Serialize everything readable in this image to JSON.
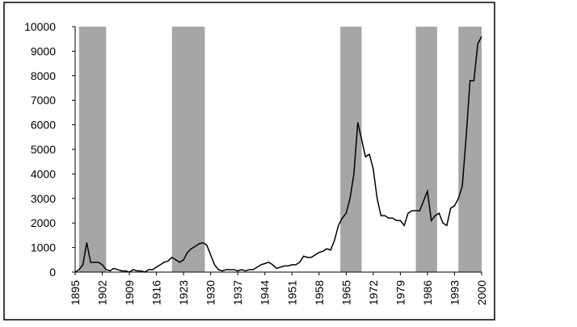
{
  "chart_data": {
    "type": "line",
    "x": [
      1895,
      1896,
      1897,
      1898,
      1899,
      1900,
      1901,
      1902,
      1903,
      1904,
      1905,
      1906,
      1907,
      1908,
      1909,
      1910,
      1911,
      1912,
      1913,
      1914,
      1915,
      1916,
      1917,
      1918,
      1919,
      1920,
      1921,
      1922,
      1923,
      1924,
      1925,
      1926,
      1927,
      1928,
      1929,
      1930,
      1931,
      1932,
      1933,
      1934,
      1935,
      1936,
      1937,
      1938,
      1939,
      1940,
      1941,
      1942,
      1943,
      1944,
      1945,
      1946,
      1947,
      1948,
      1949,
      1950,
      1951,
      1952,
      1953,
      1954,
      1955,
      1956,
      1957,
      1958,
      1959,
      1960,
      1961,
      1962,
      1963,
      1964,
      1965,
      1966,
      1967,
      1968,
      1969,
      1970,
      1971,
      1972,
      1973,
      1974,
      1975,
      1976,
      1977,
      1978,
      1979,
      1980,
      1981,
      1982,
      1983,
      1984,
      1985,
      1986,
      1987,
      1988,
      1989,
      1990,
      1991,
      1992,
      1993,
      1994,
      1995,
      1996,
      1997,
      1998,
      1999,
      2000
    ],
    "series": [
      {
        "color": "#000000",
        "values": [
          0,
          100,
          300,
          1200,
          400,
          400,
          400,
          300,
          100,
          50,
          150,
          100,
          50,
          50,
          0,
          100,
          50,
          50,
          0,
          100,
          100,
          200,
          300,
          400,
          450,
          600,
          500,
          400,
          500,
          800,
          950,
          1050,
          1150,
          1200,
          1100,
          700,
          300,
          100,
          50,
          100,
          100,
          100,
          50,
          100,
          50,
          100,
          100,
          200,
          300,
          350,
          400,
          300,
          150,
          200,
          250,
          250,
          300,
          300,
          400,
          650,
          600,
          600,
          700,
          800,
          850,
          950,
          900,
          1300,
          1900,
          2200,
          2400,
          3000,
          4000,
          6100,
          5400,
          4700,
          4800,
          4200,
          3000,
          2300,
          2300,
          2200,
          2200,
          2100,
          2100,
          1900,
          2400,
          2500,
          2500,
          2500,
          2900,
          3300,
          2100,
          2300,
          2400,
          2000,
          1900,
          2600,
          2700,
          3000,
          3500,
          5500,
          7800,
          7800,
          9300,
          9600
        ]
      }
    ],
    "shaded_periods": [
      [
        1896,
        1903
      ],
      [
        1920,
        1928.5
      ],
      [
        1963.5,
        1969
      ],
      [
        1983,
        1988.5
      ],
      [
        1994,
        2000
      ]
    ],
    "shade_color": "#a6a6a6",
    "xlim": [
      1895,
      2000
    ],
    "xticks": [
      1895,
      1902,
      1909,
      1916,
      1923,
      1930,
      1937,
      1944,
      1951,
      1958,
      1965,
      1972,
      1979,
      1986,
      1993,
      2000
    ],
    "ylim": [
      0,
      10000
    ],
    "yticks": [
      0,
      1000,
      2000,
      3000,
      4000,
      5000,
      6000,
      7000,
      8000,
      9000,
      10000
    ]
  }
}
